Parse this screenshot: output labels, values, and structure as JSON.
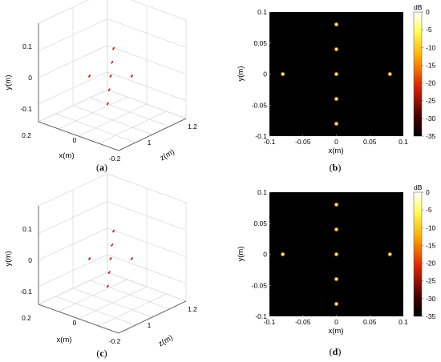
{
  "captions": {
    "a": "a",
    "b": "b",
    "c": "c",
    "d": "d"
  },
  "colors": {
    "point3d": "#e00000",
    "image_bg": "#000000",
    "spot_core": "#ffffc0",
    "spot_edge": "#ff7a00"
  },
  "chart_data": [
    {
      "panel": "a",
      "type": "scatter3d",
      "axes": {
        "x": {
          "label": "x(m)",
          "ticks": [
            "0.2",
            "0",
            "-0.2"
          ]
        },
        "y": {
          "label": "y(m)",
          "ticks": [
            "0.1",
            "0",
            "-0.1"
          ]
        },
        "z": {
          "label": "z(m)",
          "ticks": [
            "1",
            "1.2"
          ]
        }
      },
      "grid": true,
      "points": [
        {
          "x": 0.0,
          "y": 0.08,
          "z": 1.0
        },
        {
          "x": 0.0,
          "y": 0.04,
          "z": 1.0
        },
        {
          "x": 0.08,
          "y": 0.0,
          "z": 1.0
        },
        {
          "x": 0.0,
          "y": 0.0,
          "z": 1.0
        },
        {
          "x": -0.08,
          "y": 0.0,
          "z": 1.0
        },
        {
          "x": 0.0,
          "y": -0.04,
          "z": 1.0
        },
        {
          "x": 0.0,
          "y": -0.08,
          "z": 1.0
        }
      ]
    },
    {
      "panel": "b",
      "type": "heatmap",
      "axes": {
        "x": {
          "label": "x(m)",
          "ticks": [
            "-0.1",
            "-0.05",
            "0",
            "0.05",
            "0.1"
          ]
        },
        "y": {
          "label": "y(m)",
          "ticks": [
            "0.1",
            "0.05",
            "0",
            "-0.05",
            "-0.1"
          ]
        }
      },
      "xlim": [
        -0.1,
        0.1
      ],
      "ylim": [
        -0.1,
        0.1
      ],
      "colorbar": {
        "unit": "dB",
        "ticks": [
          "0",
          "-5",
          "-10",
          "-15",
          "-20",
          "-25",
          "-30",
          "-35"
        ],
        "range": [
          -35,
          0
        ]
      },
      "peaks": [
        {
          "x": 0.0,
          "y": 0.08
        },
        {
          "x": 0.0,
          "y": 0.04
        },
        {
          "x": -0.08,
          "y": 0.0
        },
        {
          "x": 0.0,
          "y": 0.0
        },
        {
          "x": 0.08,
          "y": 0.0
        },
        {
          "x": 0.0,
          "y": -0.04
        },
        {
          "x": 0.0,
          "y": -0.08
        }
      ]
    },
    {
      "panel": "c",
      "type": "scatter3d",
      "axes": {
        "x": {
          "label": "x(m)",
          "ticks": [
            "0.2",
            "0",
            "-0.2"
          ]
        },
        "y": {
          "label": "y(m)",
          "ticks": [
            "0.1",
            "0",
            "-0.1"
          ]
        },
        "z": {
          "label": "z(m)",
          "ticks": [
            "1",
            "1.2"
          ]
        }
      },
      "grid": true,
      "points": [
        {
          "x": 0.0,
          "y": 0.08,
          "z": 1.0
        },
        {
          "x": 0.0,
          "y": 0.04,
          "z": 1.0
        },
        {
          "x": 0.08,
          "y": 0.0,
          "z": 1.0
        },
        {
          "x": 0.0,
          "y": 0.0,
          "z": 1.0
        },
        {
          "x": -0.08,
          "y": 0.0,
          "z": 1.0
        },
        {
          "x": 0.0,
          "y": -0.04,
          "z": 1.0
        },
        {
          "x": 0.0,
          "y": -0.08,
          "z": 1.0
        }
      ]
    },
    {
      "panel": "d",
      "type": "heatmap",
      "axes": {
        "x": {
          "label": "x(m)",
          "ticks": [
            "-0.1",
            "-0.05",
            "0",
            "0.05",
            "0.1"
          ]
        },
        "y": {
          "label": "y(m)",
          "ticks": [
            "0.1",
            "0.05",
            "0",
            "-0.05",
            "-0.1"
          ]
        }
      },
      "xlim": [
        -0.1,
        0.1
      ],
      "ylim": [
        -0.1,
        0.1
      ],
      "colorbar": {
        "unit": "dB",
        "ticks": [
          "0",
          "-5",
          "-10",
          "-15",
          "-20",
          "-25",
          "-30",
          "-35"
        ],
        "range": [
          -35,
          0
        ]
      },
      "peaks": [
        {
          "x": 0.0,
          "y": 0.08
        },
        {
          "x": 0.0,
          "y": 0.04
        },
        {
          "x": -0.08,
          "y": 0.0
        },
        {
          "x": 0.0,
          "y": 0.0
        },
        {
          "x": 0.08,
          "y": 0.0
        },
        {
          "x": 0.0,
          "y": -0.04
        },
        {
          "x": 0.0,
          "y": -0.08
        }
      ]
    }
  ]
}
